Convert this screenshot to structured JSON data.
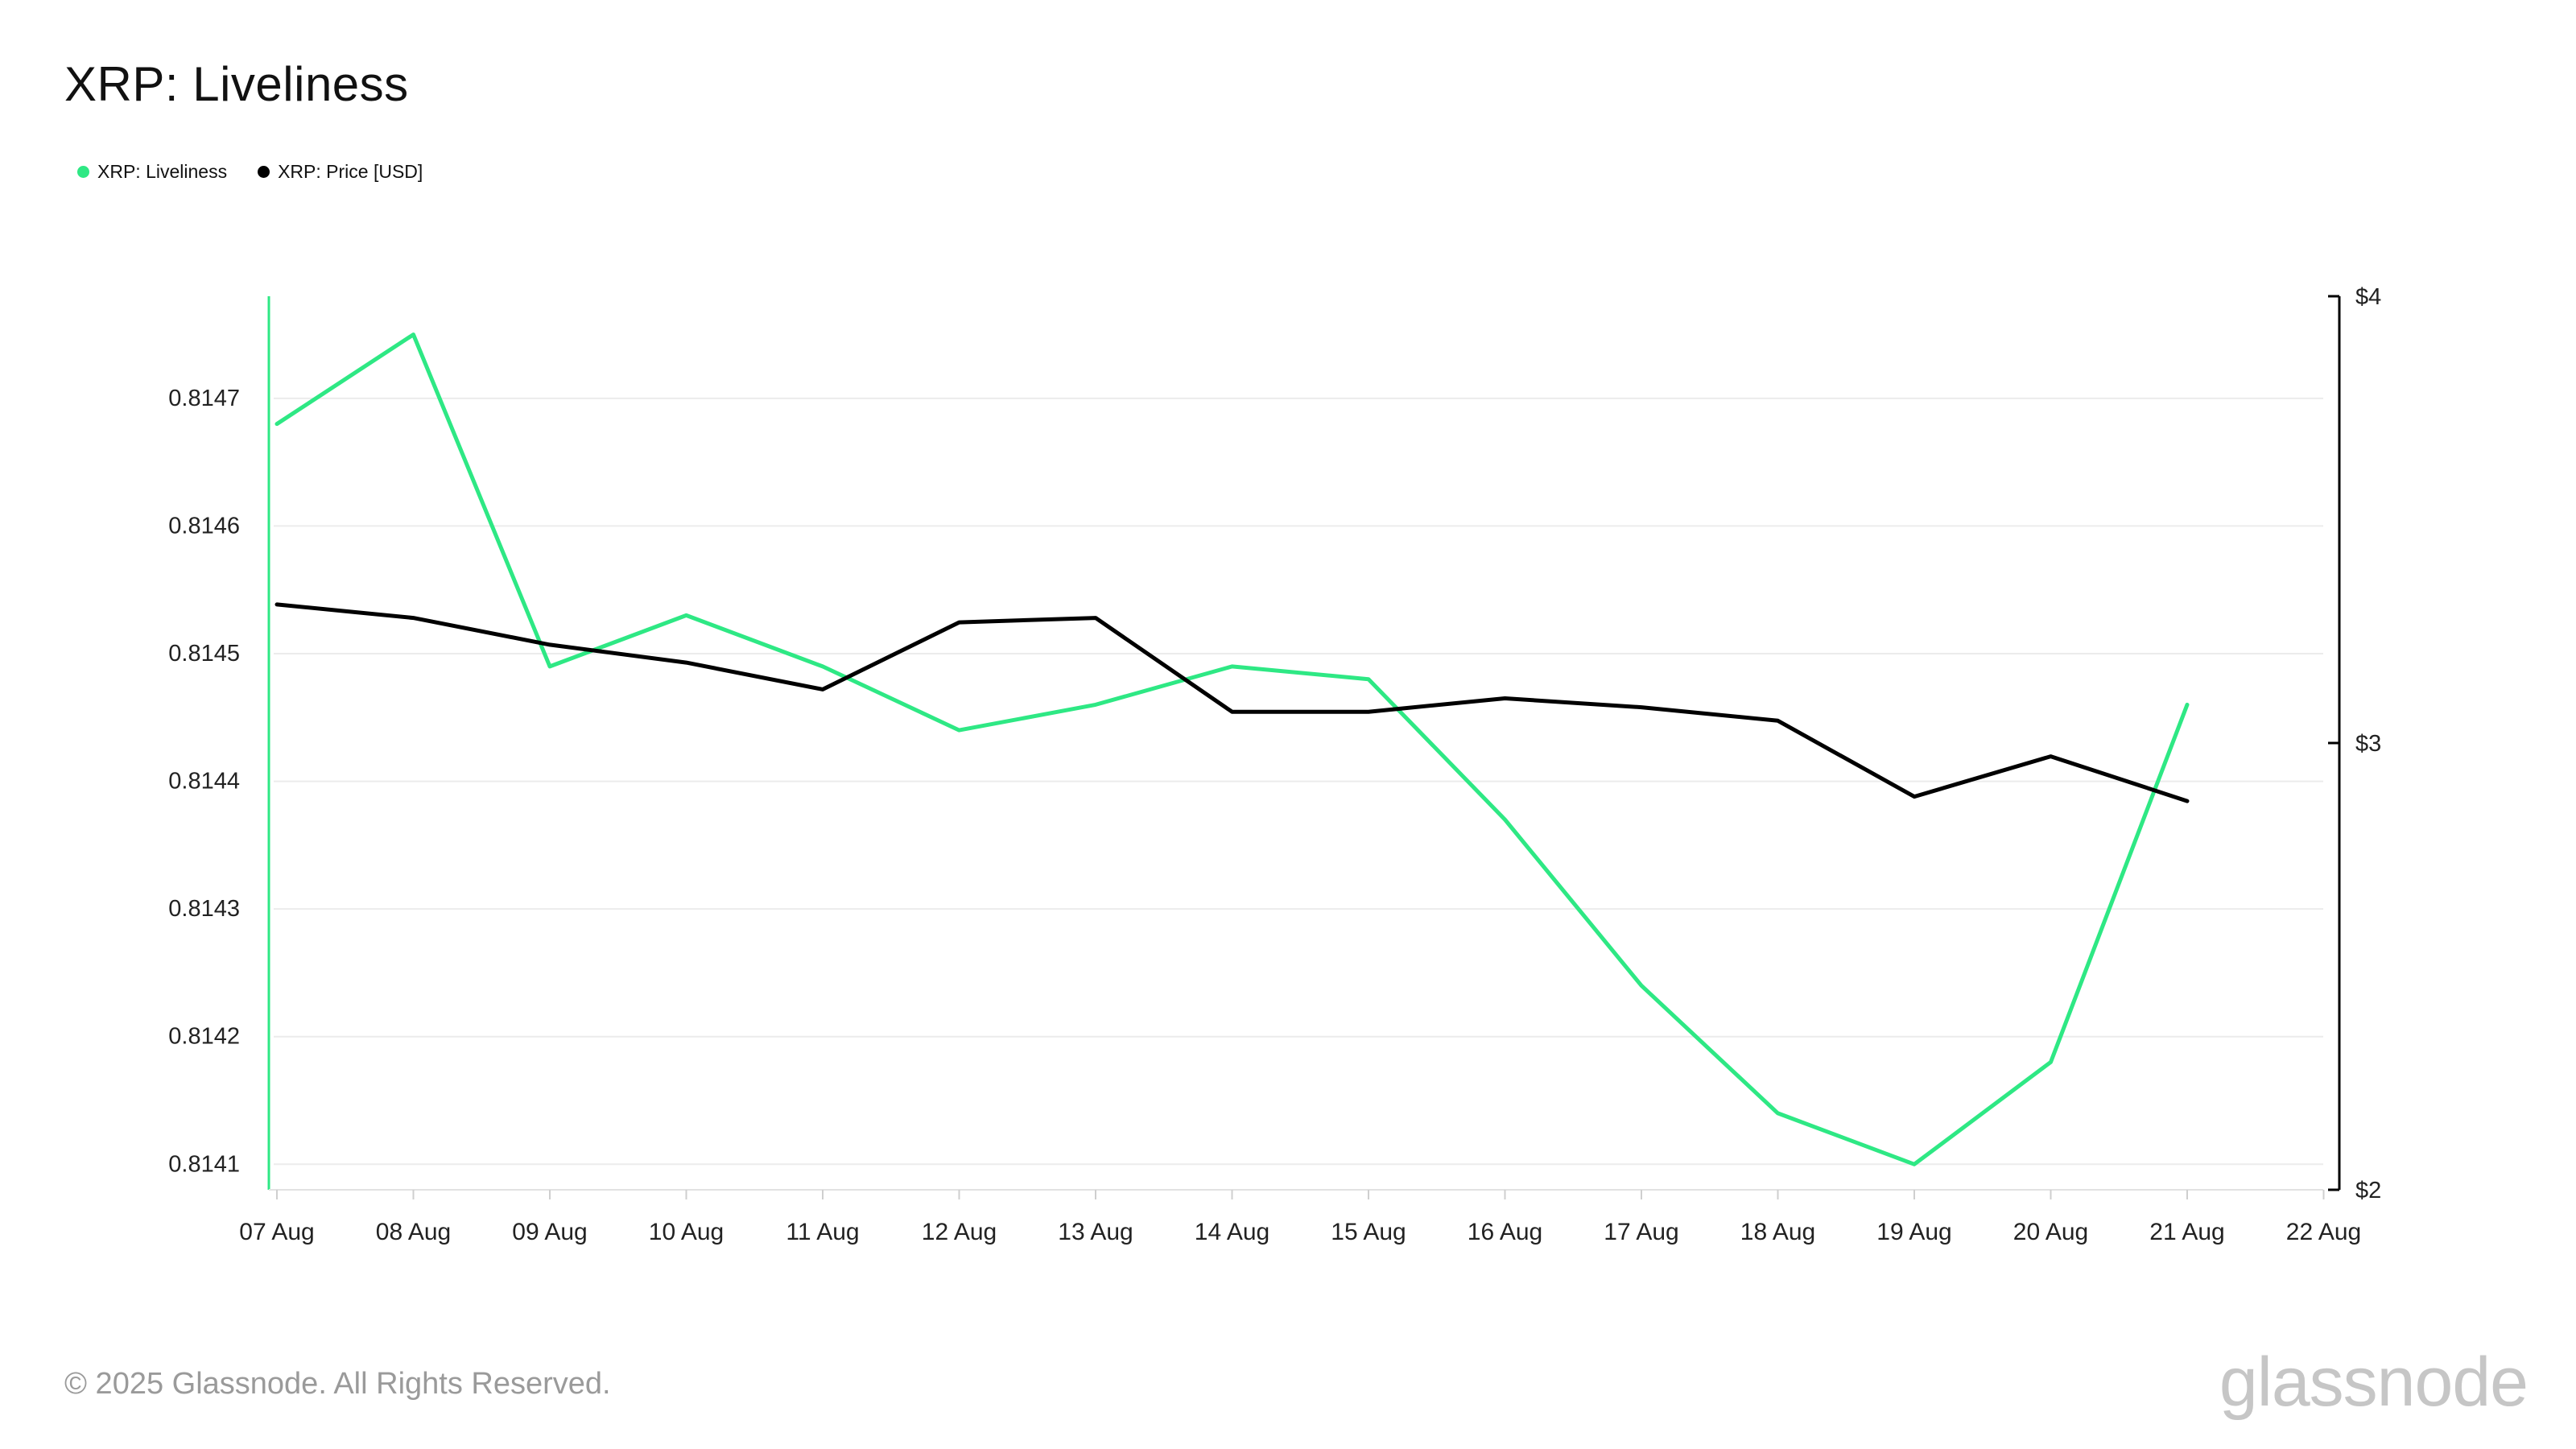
{
  "chart_data": {
    "type": "line",
    "title": "XRP: Liveliness",
    "x": [
      "07 Aug",
      "08 Aug",
      "09 Aug",
      "10 Aug",
      "11 Aug",
      "12 Aug",
      "13 Aug",
      "14 Aug",
      "15 Aug",
      "16 Aug",
      "17 Aug",
      "18 Aug",
      "19 Aug",
      "20 Aug",
      "21 Aug"
    ],
    "x_ticks": [
      "07 Aug",
      "08 Aug",
      "09 Aug",
      "10 Aug",
      "11 Aug",
      "12 Aug",
      "13 Aug",
      "14 Aug",
      "15 Aug",
      "16 Aug",
      "17 Aug",
      "18 Aug",
      "19 Aug",
      "20 Aug",
      "21 Aug",
      "22 Aug"
    ],
    "series": [
      {
        "name": "XRP: Liveliness",
        "axis": "left",
        "color": "#2ee884",
        "values": [
          0.81468,
          0.81475,
          0.81449,
          0.81453,
          0.81449,
          0.81444,
          0.81446,
          0.81449,
          0.81448,
          0.81437,
          0.81424,
          0.81414,
          0.8141,
          0.81418,
          0.81446
        ]
      },
      {
        "name": "XRP: Price [USD]",
        "axis": "right",
        "color": "#000000",
        "values": [
          3.31,
          3.28,
          3.22,
          3.18,
          3.12,
          3.27,
          3.28,
          3.07,
          3.07,
          3.1,
          3.08,
          3.05,
          2.88,
          2.97,
          2.87
        ]
      }
    ],
    "y_left": {
      "ticks": [
        "0.8141",
        "0.8142",
        "0.8143",
        "0.8144",
        "0.8145",
        "0.8146",
        "0.8147"
      ],
      "ylim": [
        0.81408,
        0.81478
      ]
    },
    "y_right": {
      "ticks": [
        "$2",
        "$3",
        "$4"
      ],
      "ylim": [
        2,
        4
      ]
    },
    "grid": true,
    "legend": "top-left"
  },
  "footer": {
    "copyright": "© 2025 Glassnode. All Rights Reserved.",
    "brand": "glassnode"
  }
}
